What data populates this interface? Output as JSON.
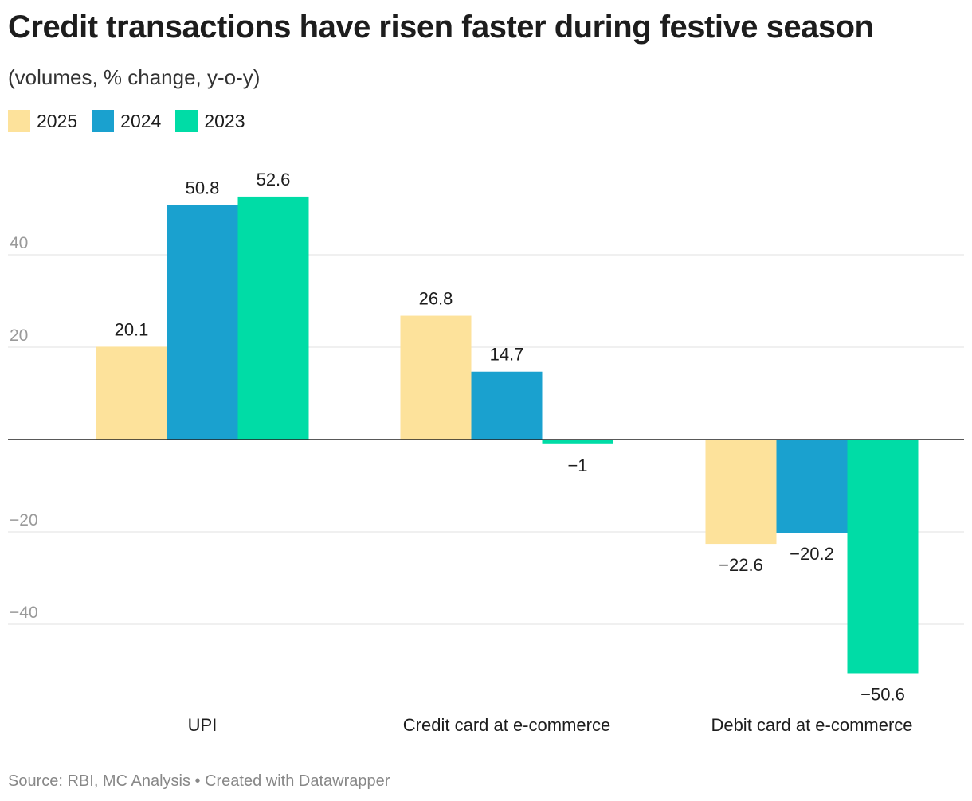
{
  "title": "Credit transactions have risen faster during festive season",
  "subtitle": "(volumes, % change, y-o-y)",
  "source": "Source: RBI, MC Analysis • Created with Datawrapper",
  "chart_data": {
    "type": "bar",
    "title": "Credit transactions have risen faster during festive season",
    "subtitle": "(volumes, % change, y-o-y)",
    "categories": [
      "UPI",
      "Credit card at e-commerce",
      "Debit card at e-commerce"
    ],
    "series": [
      {
        "name": "2025",
        "color": "#fde29b",
        "values": [
          20.1,
          26.8,
          -22.6
        ],
        "labels": [
          "20.1",
          "26.8",
          "−22.6"
        ]
      },
      {
        "name": "2024",
        "color": "#1aa1cf",
        "values": [
          50.8,
          14.7,
          -20.2
        ],
        "labels": [
          "50.8",
          "14.7",
          "−20.2"
        ]
      },
      {
        "name": "2023",
        "color": "#00dca6",
        "values": [
          52.6,
          -1,
          -50.6
        ],
        "labels": [
          "52.6",
          "−1",
          "−50.6"
        ]
      }
    ],
    "yticks": [
      40,
      20,
      -20,
      -40
    ],
    "ytick_labels": [
      "40",
      "20",
      "−20",
      "−40"
    ],
    "ylim": [
      -60,
      60
    ],
    "grid": true,
    "legend": "top-left"
  }
}
